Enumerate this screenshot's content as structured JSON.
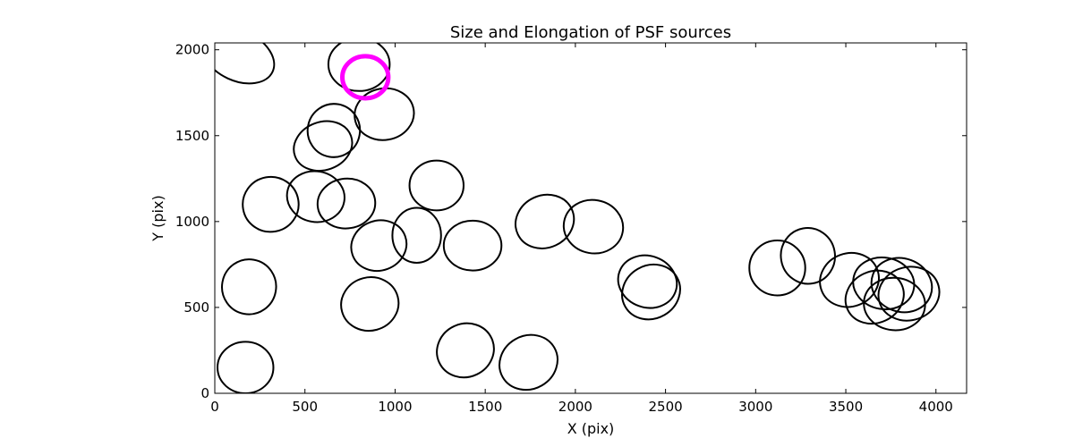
{
  "chart_data": {
    "type": "scatter",
    "title": "Size and Elongation of PSF sources",
    "xlabel": "X (pix)",
    "ylabel": "Y (pix)",
    "xlim": [
      0,
      4170
    ],
    "ylim": [
      0,
      2040
    ],
    "xticks": [
      0,
      500,
      1000,
      1500,
      2000,
      2500,
      3000,
      3500,
      4000
    ],
    "yticks": [
      0,
      500,
      1000,
      1500,
      2000
    ],
    "grid": false,
    "marker": "ellipse",
    "colors": {
      "sources": "#000000",
      "highlight": "#ff00ff"
    },
    "sources": [
      {
        "x": 130,
        "y": 1965,
        "a": 420,
        "b": 290,
        "angle": -25
      },
      {
        "x": 800,
        "y": 1915,
        "a": 340,
        "b": 310,
        "angle": 0
      },
      {
        "x": 940,
        "y": 1625,
        "a": 330,
        "b": 300,
        "angle": 10
      },
      {
        "x": 600,
        "y": 1440,
        "a": 330,
        "b": 280,
        "angle": 20
      },
      {
        "x": 660,
        "y": 1530,
        "a": 290,
        "b": 310,
        "angle": -10
      },
      {
        "x": 1230,
        "y": 1210,
        "a": 300,
        "b": 290,
        "angle": 0
      },
      {
        "x": 310,
        "y": 1100,
        "a": 310,
        "b": 320,
        "angle": 10
      },
      {
        "x": 560,
        "y": 1145,
        "a": 320,
        "b": 295,
        "angle": -10
      },
      {
        "x": 730,
        "y": 1105,
        "a": 320,
        "b": 290,
        "angle": 5
      },
      {
        "x": 1120,
        "y": 920,
        "a": 270,
        "b": 320,
        "angle": 0
      },
      {
        "x": 910,
        "y": 860,
        "a": 310,
        "b": 290,
        "angle": 20
      },
      {
        "x": 1430,
        "y": 860,
        "a": 320,
        "b": 290,
        "angle": 0
      },
      {
        "x": 1830,
        "y": 1000,
        "a": 330,
        "b": 305,
        "angle": 25
      },
      {
        "x": 2100,
        "y": 970,
        "a": 330,
        "b": 310,
        "angle": -10
      },
      {
        "x": 2400,
        "y": 650,
        "a": 330,
        "b": 300,
        "angle": -20
      },
      {
        "x": 2420,
        "y": 590,
        "a": 330,
        "b": 310,
        "angle": 30
      },
      {
        "x": 190,
        "y": 620,
        "a": 300,
        "b": 320,
        "angle": -10
      },
      {
        "x": 860,
        "y": 520,
        "a": 320,
        "b": 310,
        "angle": 15
      },
      {
        "x": 1390,
        "y": 250,
        "a": 320,
        "b": 310,
        "angle": 25
      },
      {
        "x": 1740,
        "y": 180,
        "a": 330,
        "b": 310,
        "angle": 30
      },
      {
        "x": 170,
        "y": 150,
        "a": 310,
        "b": 300,
        "angle": 0
      },
      {
        "x": 3120,
        "y": 730,
        "a": 310,
        "b": 320,
        "angle": 0
      },
      {
        "x": 3290,
        "y": 800,
        "a": 300,
        "b": 325,
        "angle": 10
      },
      {
        "x": 3520,
        "y": 660,
        "a": 330,
        "b": 310,
        "angle": 20
      },
      {
        "x": 3710,
        "y": 640,
        "a": 340,
        "b": 300,
        "angle": -10
      },
      {
        "x": 3810,
        "y": 630,
        "a": 340,
        "b": 310,
        "angle": -20
      },
      {
        "x": 3850,
        "y": 580,
        "a": 340,
        "b": 310,
        "angle": 15
      },
      {
        "x": 3770,
        "y": 520,
        "a": 340,
        "b": 305,
        "angle": -5
      },
      {
        "x": 3660,
        "y": 560,
        "a": 330,
        "b": 300,
        "angle": 25
      }
    ],
    "highlight": {
      "x": 835,
      "y": 1840,
      "a": 255,
      "b": 245,
      "angle": 0
    }
  }
}
